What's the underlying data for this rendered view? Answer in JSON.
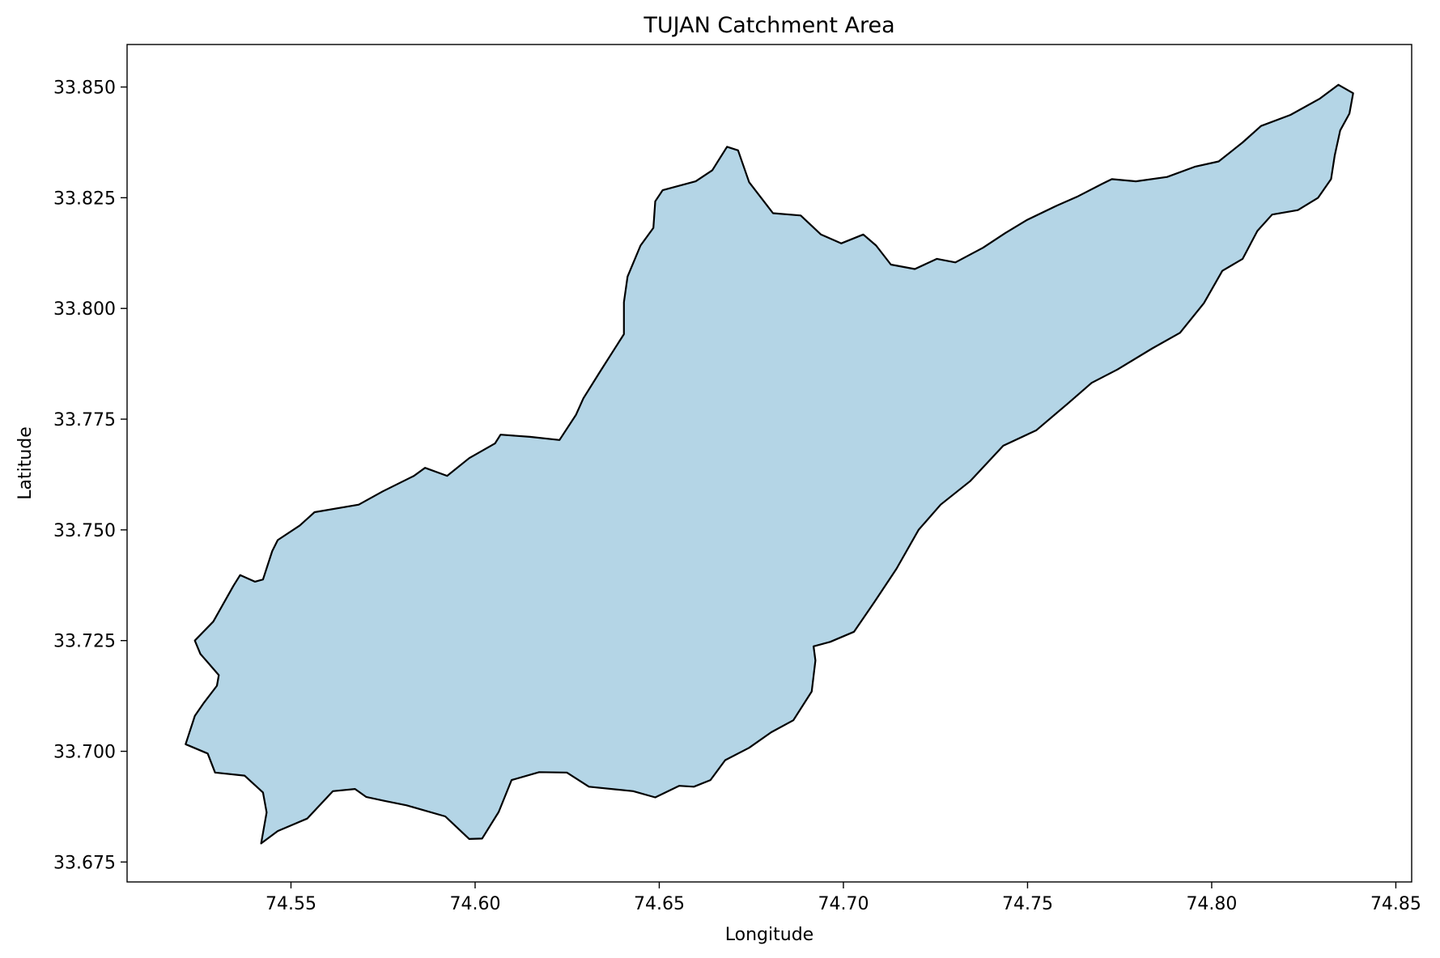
{
  "chart_data": {
    "type": "map",
    "title": "TUJAN Catchment Area",
    "xlabel": "Longitude",
    "ylabel": "Latitude",
    "xlim": [
      74.5055,
      74.8543
    ],
    "ylim": [
      33.6705,
      33.8596
    ],
    "x_ticks": [
      74.55,
      74.6,
      74.65,
      74.7,
      74.75,
      74.8,
      74.85
    ],
    "x_tick_labels": [
      "74.55",
      "74.60",
      "74.65",
      "74.70",
      "74.75",
      "74.80",
      "74.85"
    ],
    "y_ticks": [
      33.675,
      33.7,
      33.725,
      33.75,
      33.775,
      33.8,
      33.825,
      33.85
    ],
    "y_tick_labels": [
      "33.675",
      "33.700",
      "33.725",
      "33.750",
      "33.775",
      "33.800",
      "33.825",
      "33.850"
    ],
    "grid": false,
    "fill_color": "#b4d5e6",
    "edge_color": "#000000",
    "catchment_boundary": [
      [
        74.5214,
        33.7016
      ],
      [
        74.5239,
        33.708
      ],
      [
        74.5264,
        33.711
      ],
      [
        74.5299,
        33.7148
      ],
      [
        74.5304,
        33.7172
      ],
      [
        74.5254,
        33.722
      ],
      [
        74.5239,
        33.725
      ],
      [
        74.5289,
        33.7293
      ],
      [
        74.5344,
        33.7374
      ],
      [
        74.5362,
        33.7398
      ],
      [
        74.5402,
        33.7383
      ],
      [
        74.5424,
        33.7388
      ],
      [
        74.5449,
        33.7452
      ],
      [
        74.5464,
        33.7477
      ],
      [
        74.5524,
        33.751
      ],
      [
        74.5564,
        33.754
      ],
      [
        74.5684,
        33.7557
      ],
      [
        74.5749,
        33.7587
      ],
      [
        74.5834,
        33.7622
      ],
      [
        74.5864,
        33.764
      ],
      [
        74.5924,
        33.7622
      ],
      [
        74.5984,
        33.7662
      ],
      [
        74.6054,
        33.7695
      ],
      [
        74.6069,
        33.7715
      ],
      [
        74.6149,
        33.771
      ],
      [
        74.6229,
        33.7703
      ],
      [
        74.6274,
        33.776
      ],
      [
        74.6294,
        33.7797
      ],
      [
        74.6339,
        33.7857
      ],
      [
        74.6404,
        33.7942
      ],
      [
        74.6404,
        33.8014
      ],
      [
        74.6414,
        33.8072
      ],
      [
        74.6449,
        33.8142
      ],
      [
        74.6484,
        33.8182
      ],
      [
        74.6489,
        33.8242
      ],
      [
        74.6509,
        33.8267
      ],
      [
        74.6599,
        33.8287
      ],
      [
        74.6644,
        33.8312
      ],
      [
        74.6684,
        33.8365
      ],
      [
        74.6714,
        33.8357
      ],
      [
        74.6744,
        33.8285
      ],
      [
        74.6809,
        33.8215
      ],
      [
        74.6884,
        33.821
      ],
      [
        74.6939,
        33.8167
      ],
      [
        74.6994,
        33.8147
      ],
      [
        74.7054,
        33.8167
      ],
      [
        74.7089,
        33.8142
      ],
      [
        74.7129,
        33.8099
      ],
      [
        74.7194,
        33.8089
      ],
      [
        74.7254,
        33.8112
      ],
      [
        74.7304,
        33.8104
      ],
      [
        74.7379,
        33.8137
      ],
      [
        74.7439,
        33.817
      ],
      [
        74.7499,
        33.82
      ],
      [
        74.7579,
        33.8232
      ],
      [
        74.7634,
        33.8252
      ],
      [
        74.7704,
        33.8282
      ],
      [
        74.7729,
        33.8292
      ],
      [
        74.7794,
        33.8287
      ],
      [
        74.7879,
        33.8297
      ],
      [
        74.7954,
        33.832
      ],
      [
        74.8019,
        33.8332
      ],
      [
        74.8084,
        33.8375
      ],
      [
        74.8134,
        33.8412
      ],
      [
        74.8214,
        33.8437
      ],
      [
        74.8294,
        33.8474
      ],
      [
        74.8344,
        33.8505
      ],
      [
        74.8384,
        33.8486
      ],
      [
        74.8374,
        33.844
      ],
      [
        74.8349,
        33.8402
      ],
      [
        74.8334,
        33.8345
      ],
      [
        74.8324,
        33.8292
      ],
      [
        74.8289,
        33.825
      ],
      [
        74.8234,
        33.8222
      ],
      [
        74.8164,
        33.8212
      ],
      [
        74.8124,
        33.8175
      ],
      [
        74.8084,
        33.8112
      ],
      [
        74.8029,
        33.8085
      ],
      [
        74.7979,
        33.8012
      ],
      [
        74.7914,
        33.7945
      ],
      [
        74.7839,
        33.791
      ],
      [
        74.7744,
        33.7862
      ],
      [
        74.7674,
        33.7832
      ],
      [
        74.7609,
        33.7785
      ],
      [
        74.7524,
        33.7725
      ],
      [
        74.7434,
        33.769
      ],
      [
        74.7344,
        33.761
      ],
      [
        74.7264,
        33.7557
      ],
      [
        74.7204,
        33.75
      ],
      [
        74.7144,
        33.7412
      ],
      [
        74.7084,
        33.7337
      ],
      [
        74.7029,
        33.727
      ],
      [
        74.6964,
        33.7247
      ],
      [
        74.6919,
        33.7237
      ],
      [
        74.6924,
        33.7205
      ],
      [
        74.6914,
        33.7135
      ],
      [
        74.6864,
        33.707
      ],
      [
        74.6804,
        33.7043
      ],
      [
        74.6744,
        33.7008
      ],
      [
        74.6679,
        33.698
      ],
      [
        74.6639,
        33.6935
      ],
      [
        74.6594,
        33.692
      ],
      [
        74.6554,
        33.6922
      ],
      [
        74.6489,
        33.6896
      ],
      [
        74.6429,
        33.691
      ],
      [
        74.6309,
        33.692
      ],
      [
        74.6249,
        33.6952
      ],
      [
        74.6174,
        33.6953
      ],
      [
        74.6099,
        33.6935
      ],
      [
        74.6064,
        33.6863
      ],
      [
        74.6019,
        33.6803
      ],
      [
        74.5984,
        33.6802
      ],
      [
        74.5919,
        33.6853
      ],
      [
        74.5814,
        33.6878
      ],
      [
        74.5754,
        33.6888
      ],
      [
        74.5704,
        33.6897
      ],
      [
        74.5674,
        33.6915
      ],
      [
        74.5614,
        33.691
      ],
      [
        74.5544,
        33.6848
      ],
      [
        74.5464,
        33.682
      ],
      [
        74.5419,
        33.6792
      ],
      [
        74.5434,
        33.6862
      ],
      [
        74.5424,
        33.6907
      ],
      [
        74.5374,
        33.6945
      ],
      [
        74.5294,
        33.6952
      ],
      [
        74.5274,
        33.6995
      ],
      [
        74.5214,
        33.7016
      ]
    ]
  }
}
